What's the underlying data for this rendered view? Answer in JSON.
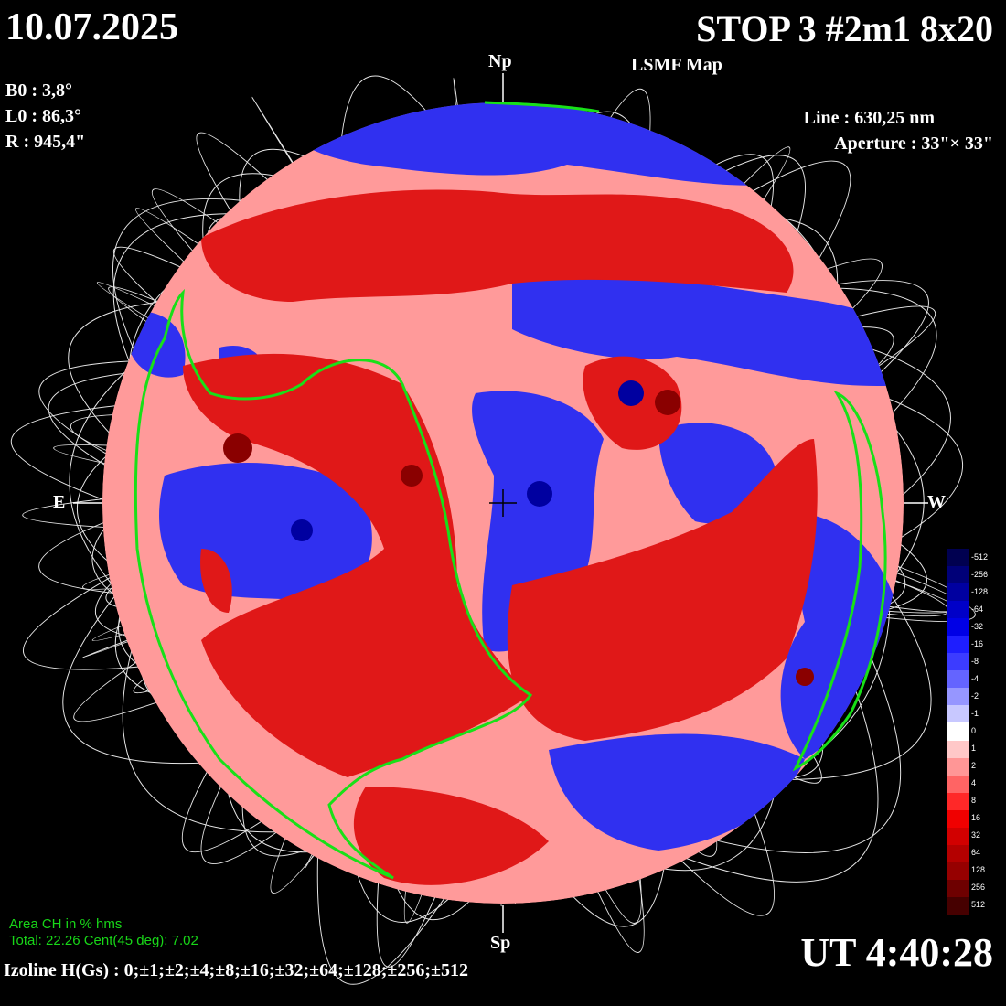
{
  "header": {
    "date": "10.07.2025",
    "title": "STOP 3 #2m1 8x20",
    "subtitle": "LSMF  Map"
  },
  "params": {
    "b0": "B0 : 3,8°",
    "l0": "L0 : 86,3°",
    "r": "R  : 945,4\"",
    "line": "Line :  630,25 nm",
    "aperture": "Aperture : 33\"× 33\""
  },
  "directions": {
    "north": "Np",
    "south": "Sp",
    "east": "E",
    "west": "W"
  },
  "coronal_holes": {
    "title": "Area CH in % hms",
    "values": "Total: 22.26    Cent(45 deg): 7.02"
  },
  "time": "UT 4:40:28",
  "izoline": "Izoline H(Gs) : 0;±1;±2;±4;±8;±16;±32;±64;±128;±256;±512",
  "color_scale": {
    "labels": [
      "-512",
      "-256",
      "-128",
      "-64",
      "-32",
      "-16",
      "-8",
      "-4",
      "-2",
      "-1",
      "0",
      "1",
      "2",
      "4",
      "8",
      "16",
      "32",
      "64",
      "128",
      "256",
      "512"
    ],
    "colors": [
      "#000050",
      "#000078",
      "#0000a0",
      "#0000c8",
      "#0000e6",
      "#1e1eff",
      "#3c3cff",
      "#6464ff",
      "#9696ff",
      "#c8c8ff",
      "#ffffff",
      "#ffc8c8",
      "#ff9696",
      "#ff6464",
      "#ff2828",
      "#f00000",
      "#d20000",
      "#b40000",
      "#960000",
      "#6e0000",
      "#460000"
    ]
  },
  "colors": {
    "coronal_hole_outline": "#18e018",
    "positive": "#e01818",
    "negative": "#1818e0"
  }
}
